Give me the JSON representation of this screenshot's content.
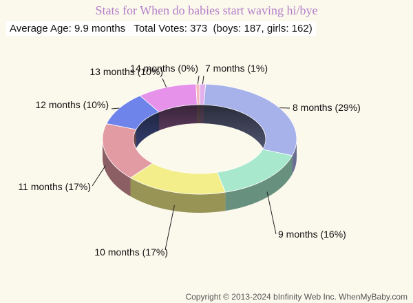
{
  "title": "Stats for When do babies start waving hi/bye",
  "stats_line": "Average Age: 9.9 months   Total Votes: 373  (boys: 187, girls: 162)",
  "footer": "Copyright © 2013-2024 bInfinity Web Inc.  WhenMyBaby.com",
  "chart_data": {
    "type": "pie",
    "style": "3d-donut",
    "categories": [
      "7 months",
      "8 months",
      "9 months",
      "10 months",
      "11 months",
      "12 months",
      "13 months",
      "14 months"
    ],
    "values": [
      1,
      29,
      16,
      17,
      17,
      10,
      10,
      0
    ],
    "labels": [
      "7 months (1%)",
      "8 months (29%)",
      "9 months (16%)",
      "10 months (17%)",
      "11 months (17%)",
      "12 months (10%)",
      "13 months (10%)",
      "14 months (0%)"
    ],
    "colors": [
      "#e3b0ee",
      "#a7b2ea",
      "#a8e8cd",
      "#f3ee8a",
      "#e29aa3",
      "#6e84ea",
      "#e692ea",
      "#f4b6bf"
    ]
  }
}
